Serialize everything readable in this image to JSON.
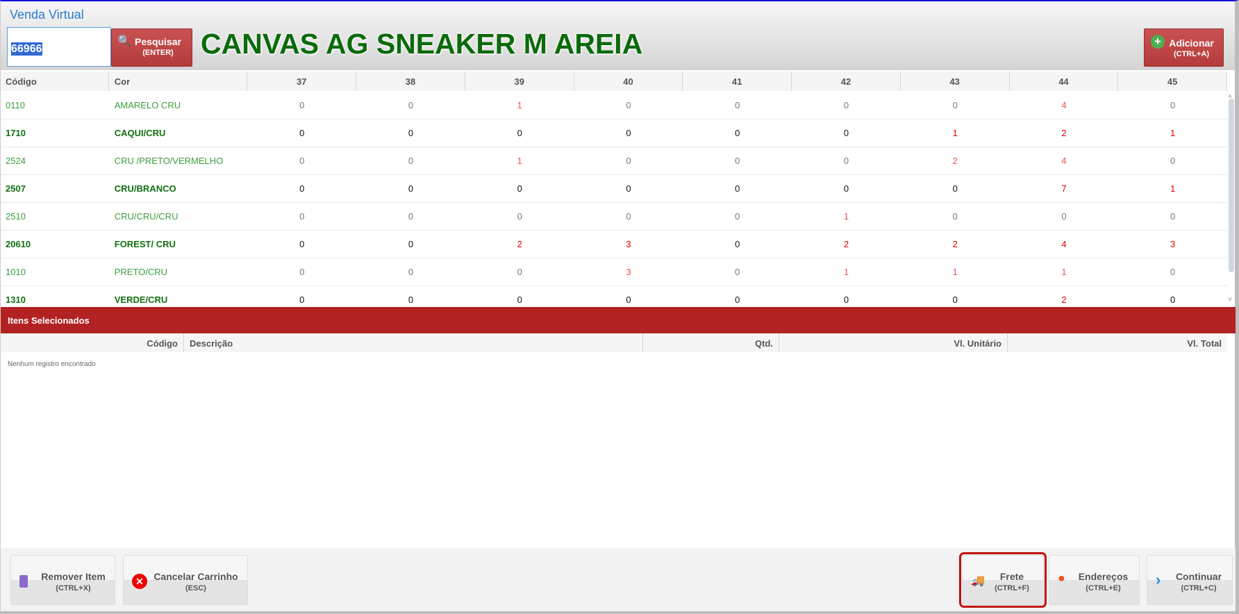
{
  "window": {
    "title": "Venda Virtual"
  },
  "search": {
    "value": "66966",
    "button_label": "Pesquisar",
    "button_shortcut": "(ENTER)"
  },
  "product_name": "CANVAS AG SNEAKER M AREIA",
  "add_button": {
    "label": "Adicionar",
    "shortcut": "(CTRL+A)"
  },
  "grid": {
    "headers": [
      "Código",
      "Cor",
      "37",
      "38",
      "39",
      "40",
      "41",
      "42",
      "43",
      "44",
      "45"
    ],
    "rows": [
      {
        "code": "0110",
        "color": "AMARELO CRU",
        "qty": [
          "0",
          "0",
          "1",
          "0",
          "0",
          "0",
          "0",
          "4",
          "0"
        ]
      },
      {
        "code": "1710",
        "color": "CAQUI/CRU",
        "qty": [
          "0",
          "0",
          "0",
          "0",
          "0",
          "0",
          "1",
          "2",
          "1"
        ]
      },
      {
        "code": "2524",
        "color": "CRU /PRETO/VERMELHO",
        "qty": [
          "0",
          "0",
          "1",
          "0",
          "0",
          "0",
          "2",
          "4",
          "0"
        ]
      },
      {
        "code": "2507",
        "color": "CRU/BRANCO",
        "qty": [
          "0",
          "0",
          "0",
          "0",
          "0",
          "0",
          "0",
          "7",
          "1"
        ]
      },
      {
        "code": "2510",
        "color": "CRU/CRU/CRU",
        "qty": [
          "0",
          "0",
          "0",
          "0",
          "0",
          "1",
          "0",
          "0",
          "0"
        ]
      },
      {
        "code": "20610",
        "color": "FOREST/ CRU",
        "qty": [
          "0",
          "0",
          "2",
          "3",
          "0",
          "2",
          "2",
          "4",
          "3"
        ]
      },
      {
        "code": "1010",
        "color": "PRETO/CRU",
        "qty": [
          "0",
          "0",
          "0",
          "3",
          "0",
          "1",
          "1",
          "1",
          "0"
        ]
      },
      {
        "code": "1310",
        "color": "VERDE/CRU",
        "qty": [
          "0",
          "0",
          "0",
          "0",
          "0",
          "0",
          "0",
          "2",
          "0"
        ]
      }
    ]
  },
  "selected": {
    "title": "Itens Selecionados",
    "headers": [
      "Código",
      "Descrição",
      "Qtd.",
      "Vl. Unitário",
      "Vl. Total"
    ],
    "empty_message": "Nenhum registro encontrado"
  },
  "footer": {
    "remove": {
      "label": "Remover Item",
      "shortcut": "(CTRL+X)"
    },
    "cancel": {
      "label": "Cancelar Carrinho",
      "shortcut": "(ESC)"
    },
    "freight": {
      "label": "Frete",
      "shortcut": "(CTRL+F)"
    },
    "addresses": {
      "label": "Endereços",
      "shortcut": "(CTRL+E)"
    },
    "continue": {
      "label": "Continuar",
      "shortcut": "(CTRL+C)"
    }
  },
  "colors": {
    "accent_red": "#b22222",
    "product_green": "#0b6a0b",
    "title_blue": "#2b7bd0"
  }
}
